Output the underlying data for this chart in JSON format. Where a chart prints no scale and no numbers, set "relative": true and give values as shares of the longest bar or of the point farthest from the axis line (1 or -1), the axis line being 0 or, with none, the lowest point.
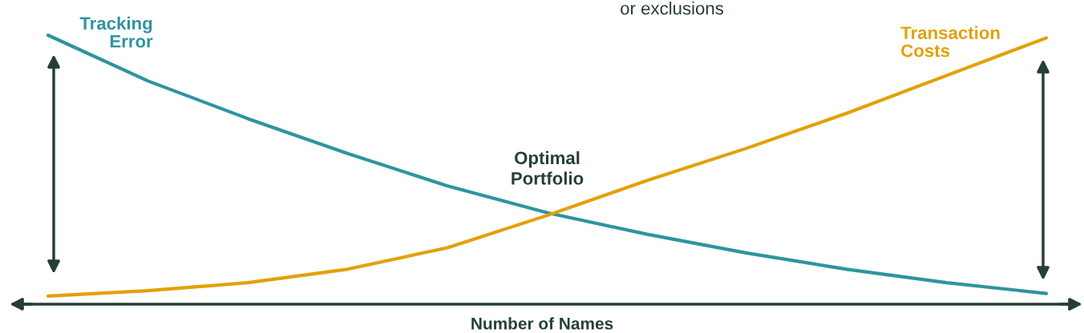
{
  "chart_data": {
    "type": "line",
    "relative": true,
    "xlabel": "Number of Names",
    "categories": [
      null,
      null,
      null,
      null,
      null,
      null,
      null,
      null,
      null,
      null,
      null
    ],
    "series": [
      {
        "name": "Tracking\nError",
        "color": "#2e94a0",
        "values": [
          1.0,
          0.83,
          0.69,
          0.56,
          0.44,
          0.34,
          0.26,
          0.19,
          0.13,
          0.08,
          0.04
        ]
      },
      {
        "name": "Transaction\nCosts",
        "color": "#e3a008",
        "values": [
          0.03,
          0.05,
          0.08,
          0.13,
          0.21,
          0.33,
          0.46,
          0.58,
          0.71,
          0.85,
          0.99
        ]
      }
    ],
    "annotations": [
      "Optimal\nPortfolio",
      "or exclusions"
    ],
    "grid": false,
    "legend": false,
    "marker": "none",
    "line_style": "solid"
  }
}
